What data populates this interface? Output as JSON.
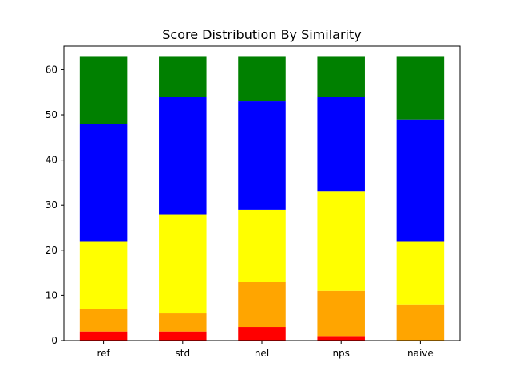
{
  "chart_data": {
    "type": "bar",
    "stacked": true,
    "title": "Score Distribution By Similarity",
    "xlabel": "",
    "ylabel": "",
    "categories": [
      "ref",
      "std",
      "nel",
      "nps",
      "naive"
    ],
    "ylim": [
      0,
      65.2
    ],
    "yticks": [
      0,
      10,
      20,
      30,
      40,
      50,
      60
    ],
    "grid": false,
    "series": [
      {
        "color": "#ff0000",
        "values": [
          2,
          2,
          3,
          1,
          0
        ]
      },
      {
        "color": "#ffa500",
        "values": [
          5,
          4,
          10,
          10,
          8
        ]
      },
      {
        "color": "#ffff00",
        "values": [
          15,
          22,
          16,
          22,
          14
        ]
      },
      {
        "color": "#0000ff",
        "values": [
          26,
          26,
          24,
          21,
          27
        ]
      },
      {
        "color": "#008000",
        "values": [
          15,
          9,
          10,
          9,
          14
        ]
      }
    ]
  }
}
